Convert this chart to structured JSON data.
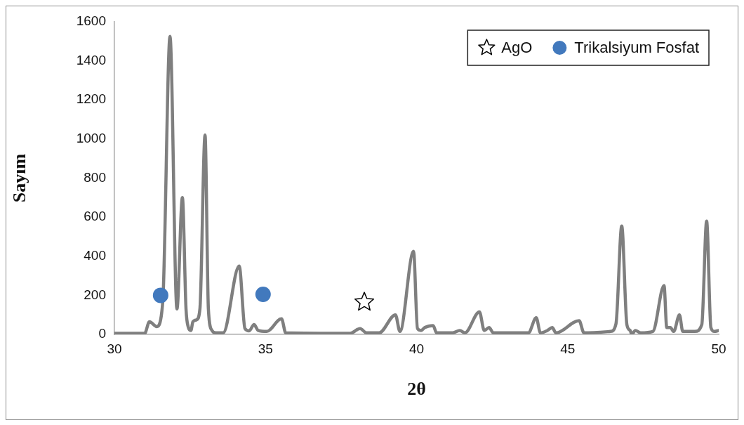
{
  "chart_data": {
    "type": "line",
    "xlabel": "2θ",
    "ylabel": "Sayım",
    "xlim": [
      30,
      50
    ],
    "xticks": [
      30,
      35,
      40,
      45,
      50
    ],
    "ylim": [
      0,
      1600
    ],
    "yticks": [
      0,
      200,
      400,
      600,
      800,
      1000,
      1200,
      1400,
      1600
    ],
    "grid": false,
    "legend": "top right",
    "line_style": "solid",
    "series": [
      {
        "color": "#7f7f7f",
        "marker": "none",
        "x": [
          30,
          31.0,
          31.16,
          31.4,
          31.6,
          31.84,
          32.07,
          32.25,
          32.37,
          32.44,
          32.53,
          32.6,
          32.72,
          32.83,
          33.0,
          33.11,
          33.23,
          33.35,
          33.6,
          34.13,
          34.32,
          34.46,
          34.62,
          34.76,
          35.04,
          35.53,
          35.67,
          37.8,
          38.13,
          38.34,
          38.76,
          39.3,
          39.45,
          39.9,
          40.03,
          40.15,
          40.27,
          40.55,
          40.66,
          41.2,
          41.43,
          41.6,
          42.08,
          42.24,
          42.4,
          42.54,
          43.7,
          43.96,
          44.1,
          44.33,
          44.49,
          44.61,
          45.38,
          45.54,
          46.42,
          46.6,
          46.79,
          46.96,
          47.07,
          47.12,
          47.24,
          47.42,
          47.82,
          48.19,
          48.28,
          48.4,
          48.51,
          48.7,
          48.81,
          49.21,
          49.44,
          49.6,
          49.74,
          49.86,
          50
        ],
        "values": [
          5,
          5,
          65,
          40,
          165,
          1525,
          130,
          700,
          130,
          40,
          20,
          65,
          75,
          130,
          1020,
          130,
          20,
          8,
          8,
          350,
          30,
          18,
          50,
          20,
          15,
          80,
          8,
          5,
          30,
          8,
          8,
          100,
          15,
          425,
          30,
          20,
          35,
          45,
          8,
          8,
          20,
          8,
          115,
          20,
          35,
          8,
          8,
          85,
          8,
          20,
          35,
          8,
          70,
          8,
          15,
          55,
          555,
          50,
          20,
          0,
          20,
          8,
          15,
          250,
          35,
          35,
          15,
          100,
          15,
          15,
          50,
          580,
          35,
          15,
          20
        ]
      },
      {
        "type": "scatter",
        "name": "AgO",
        "color": "#000000",
        "marker": "star",
        "x": [
          38.27
        ],
        "values": [
          165
        ]
      },
      {
        "type": "scatter",
        "name": "Trikalsiyum Fosfat",
        "color": "#4279bd",
        "marker": "circle",
        "x": [
          31.53,
          34.92
        ],
        "values": [
          200,
          205
        ]
      }
    ]
  }
}
